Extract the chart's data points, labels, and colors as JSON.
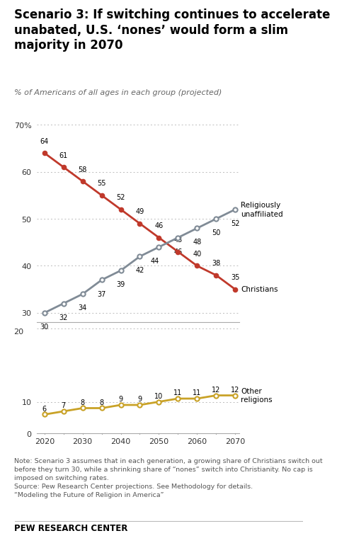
{
  "title": "Scenario 3: If switching continues to accelerate\nunabated, U.S. ‘nones’ would form a slim\nmajority in 2070",
  "subtitle": "% of Americans of all ages in each group (projected)",
  "years": [
    2020,
    2025,
    2030,
    2035,
    2040,
    2045,
    2050,
    2055,
    2060,
    2065,
    2070
  ],
  "christians": [
    64,
    61,
    58,
    55,
    52,
    49,
    46,
    43,
    40,
    38,
    35
  ],
  "unaffiliated": [
    30,
    32,
    34,
    37,
    39,
    42,
    44,
    46,
    48,
    50,
    52
  ],
  "other": [
    6,
    7,
    8,
    8,
    9,
    9,
    10,
    11,
    11,
    12,
    12
  ],
  "christian_color": "#c0392b",
  "unaffiliated_color": "#808B96",
  "other_color": "#C9A227",
  "background_color": "#ffffff",
  "note1": "Note: Scenario 3 assumes that in each generation, a growing share of Christians switch out",
  "note2": "before they turn 30, while a shrinking share of “nones” switch into Christianity. No cap is",
  "note3": "imposed on switching rates.",
  "note4": "Source: Pew Research Center projections. See Methodology for details.",
  "note5": "“Modeling the Future of Religion in America”",
  "footer": "PEW RESEARCH CENTER"
}
